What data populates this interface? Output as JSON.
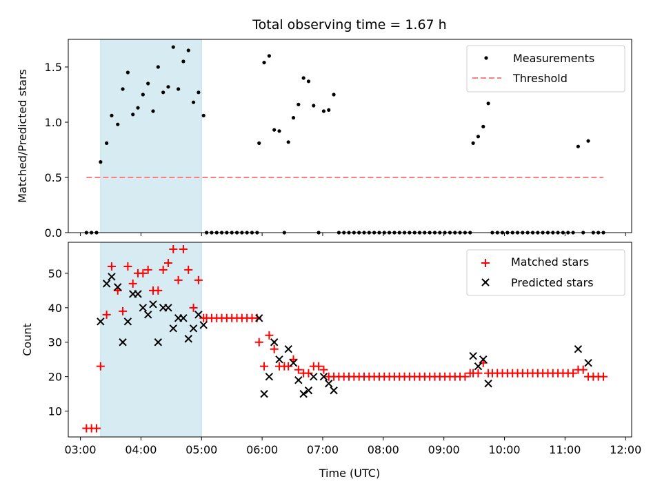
{
  "chart_data": [
    {
      "type": "scatter",
      "title": "Total observing time = 1.67 h",
      "xlabel": "",
      "ylabel": "Matched/Predicted stars",
      "ylim": [
        0,
        1.75
      ],
      "xlim": [
        "02:48",
        "12:06"
      ],
      "yticks": [
        "0.0",
        "0.5",
        "1.0",
        "1.5"
      ],
      "legend": "top-right",
      "highlight_span": {
        "from": "03:20",
        "to": "05:00",
        "color": "#add8e6"
      },
      "series": [
        {
          "name": "Measurements",
          "kind": "points",
          "color": "#000000",
          "points": [
            [
              "03:06",
              0
            ],
            [
              "03:11",
              0
            ],
            [
              "03:16",
              0
            ],
            [
              "03:20",
              0.64
            ],
            [
              "03:26",
              0.81
            ],
            [
              "03:31",
              1.06
            ],
            [
              "03:37",
              0.98
            ],
            [
              "03:42",
              1.3
            ],
            [
              "03:47",
              1.45
            ],
            [
              "03:52",
              1.07
            ],
            [
              "03:57",
              1.13
            ],
            [
              "04:02",
              1.25
            ],
            [
              "04:07",
              1.35
            ],
            [
              "04:12",
              1.1
            ],
            [
              "04:17",
              1.5
            ],
            [
              "04:22",
              1.27
            ],
            [
              "04:27",
              1.32
            ],
            [
              "04:32",
              1.68
            ],
            [
              "04:37",
              1.3
            ],
            [
              "04:42",
              1.55
            ],
            [
              "04:47",
              1.65
            ],
            [
              "04:52",
              1.18
            ],
            [
              "04:57",
              1.27
            ],
            [
              "05:02",
              1.06
            ],
            [
              "05:05",
              0
            ],
            [
              "05:10",
              0
            ],
            [
              "05:15",
              0
            ],
            [
              "05:20",
              0
            ],
            [
              "05:25",
              0
            ],
            [
              "05:30",
              0
            ],
            [
              "05:35",
              0
            ],
            [
              "05:40",
              0
            ],
            [
              "05:45",
              0
            ],
            [
              "05:50",
              0
            ],
            [
              "05:55",
              0
            ],
            [
              "05:57",
              0.81
            ],
            [
              "06:02",
              1.54
            ],
            [
              "06:07",
              1.6
            ],
            [
              "06:12",
              0.93
            ],
            [
              "06:17",
              0.92
            ],
            [
              "06:22",
              0
            ],
            [
              "06:26",
              0.82
            ],
            [
              "06:31",
              1.04
            ],
            [
              "06:36",
              1.16
            ],
            [
              "06:41",
              1.4
            ],
            [
              "06:46",
              1.37
            ],
            [
              "06:51",
              1.15
            ],
            [
              "06:56",
              0
            ],
            [
              "07:01",
              1.1
            ],
            [
              "07:06",
              1.11
            ],
            [
              "07:11",
              1.25
            ],
            [
              "07:16",
              0
            ],
            [
              "07:21",
              0
            ],
            [
              "07:26",
              0
            ],
            [
              "07:31",
              0
            ],
            [
              "07:36",
              0
            ],
            [
              "07:41",
              0
            ],
            [
              "07:46",
              0
            ],
            [
              "07:51",
              0
            ],
            [
              "07:56",
              0
            ],
            [
              "08:01",
              0
            ],
            [
              "08:06",
              0
            ],
            [
              "08:11",
              0
            ],
            [
              "08:16",
              0
            ],
            [
              "08:21",
              0
            ],
            [
              "08:26",
              0
            ],
            [
              "08:31",
              0
            ],
            [
              "08:36",
              0
            ],
            [
              "08:41",
              0
            ],
            [
              "08:46",
              0
            ],
            [
              "08:51",
              0
            ],
            [
              "08:56",
              0
            ],
            [
              "09:01",
              0
            ],
            [
              "09:06",
              0
            ],
            [
              "09:11",
              0
            ],
            [
              "09:16",
              0
            ],
            [
              "09:21",
              0
            ],
            [
              "09:26",
              0
            ],
            [
              "09:29",
              0.81
            ],
            [
              "09:34",
              0.87
            ],
            [
              "09:39",
              0.96
            ],
            [
              "09:44",
              1.17
            ],
            [
              "09:48",
              0
            ],
            [
              "09:53",
              0
            ],
            [
              "09:58",
              0
            ],
            [
              "10:03",
              0
            ],
            [
              "10:08",
              0
            ],
            [
              "10:13",
              0
            ],
            [
              "10:18",
              0
            ],
            [
              "10:23",
              0
            ],
            [
              "10:28",
              0
            ],
            [
              "10:33",
              0
            ],
            [
              "10:38",
              0
            ],
            [
              "10:43",
              0
            ],
            [
              "10:48",
              0
            ],
            [
              "10:53",
              0
            ],
            [
              "10:58",
              0
            ],
            [
              "11:03",
              0
            ],
            [
              "11:08",
              0
            ],
            [
              "11:13",
              0.78
            ],
            [
              "11:18",
              0
            ],
            [
              "11:23",
              0.83
            ],
            [
              "11:28",
              0
            ],
            [
              "11:33",
              0
            ],
            [
              "11:38",
              0
            ]
          ]
        },
        {
          "name": "Threshold",
          "kind": "dashed-line",
          "color": "#ff7f7f",
          "points": [
            [
              "03:06",
              0.5
            ],
            [
              "11:38",
              0.5
            ]
          ]
        }
      ]
    },
    {
      "type": "scatter",
      "title": "",
      "xlabel": "Time (UTC)",
      "ylabel": "Count",
      "ylim": [
        2.5,
        59
      ],
      "xlim": [
        "02:48",
        "12:06"
      ],
      "yticks": [
        "10",
        "20",
        "30",
        "40",
        "50"
      ],
      "xticks": [
        "03:00",
        "04:00",
        "05:00",
        "06:00",
        "07:00",
        "08:00",
        "09:00",
        "10:00",
        "11:00",
        "12:00"
      ],
      "legend": "top-right",
      "highlight_span": {
        "from": "03:20",
        "to": "05:00",
        "color": "#add8e6"
      },
      "series": [
        {
          "name": "Matched stars",
          "marker": "plus",
          "color": "#ff0000",
          "points": [
            [
              "03:06",
              5
            ],
            [
              "03:11",
              5
            ],
            [
              "03:16",
              5
            ],
            [
              "03:20",
              23
            ],
            [
              "03:26",
              38
            ],
            [
              "03:31",
              52
            ],
            [
              "03:37",
              45
            ],
            [
              "03:42",
              39
            ],
            [
              "03:47",
              52
            ],
            [
              "03:52",
              47
            ],
            [
              "03:57",
              50
            ],
            [
              "04:02",
              50
            ],
            [
              "04:07",
              51
            ],
            [
              "04:12",
              45
            ],
            [
              "04:17",
              45
            ],
            [
              "04:22",
              51
            ],
            [
              "04:27",
              53
            ],
            [
              "04:32",
              57
            ],
            [
              "04:37",
              48
            ],
            [
              "04:42",
              57
            ],
            [
              "04:47",
              51
            ],
            [
              "04:52",
              40
            ],
            [
              "04:57",
              48
            ],
            [
              "05:02",
              37
            ],
            [
              "05:05",
              37
            ],
            [
              "05:10",
              37
            ],
            [
              "05:15",
              37
            ],
            [
              "05:20",
              37
            ],
            [
              "05:25",
              37
            ],
            [
              "05:30",
              37
            ],
            [
              "05:35",
              37
            ],
            [
              "05:40",
              37
            ],
            [
              "05:45",
              37
            ],
            [
              "05:50",
              37
            ],
            [
              "05:55",
              37
            ],
            [
              "05:57",
              30
            ],
            [
              "06:02",
              23
            ],
            [
              "06:07",
              32
            ],
            [
              "06:12",
              28
            ],
            [
              "06:17",
              23
            ],
            [
              "06:22",
              23
            ],
            [
              "06:26",
              23
            ],
            [
              "06:31",
              25
            ],
            [
              "06:36",
              22
            ],
            [
              "06:41",
              21
            ],
            [
              "06:46",
              21
            ],
            [
              "06:51",
              23
            ],
            [
              "06:56",
              23
            ],
            [
              "07:01",
              22
            ],
            [
              "07:06",
              20
            ],
            [
              "07:11",
              20
            ],
            [
              "07:16",
              20
            ],
            [
              "07:21",
              20
            ],
            [
              "07:26",
              20
            ],
            [
              "07:31",
              20
            ],
            [
              "07:36",
              20
            ],
            [
              "07:41",
              20
            ],
            [
              "07:46",
              20
            ],
            [
              "07:51",
              20
            ],
            [
              "07:56",
              20
            ],
            [
              "08:01",
              20
            ],
            [
              "08:06",
              20
            ],
            [
              "08:11",
              20
            ],
            [
              "08:16",
              20
            ],
            [
              "08:21",
              20
            ],
            [
              "08:26",
              20
            ],
            [
              "08:31",
              20
            ],
            [
              "08:36",
              20
            ],
            [
              "08:41",
              20
            ],
            [
              "08:46",
              20
            ],
            [
              "08:51",
              20
            ],
            [
              "08:56",
              20
            ],
            [
              "09:01",
              20
            ],
            [
              "09:06",
              20
            ],
            [
              "09:11",
              20
            ],
            [
              "09:16",
              20
            ],
            [
              "09:21",
              20
            ],
            [
              "09:26",
              21
            ],
            [
              "09:29",
              21
            ],
            [
              "09:34",
              21
            ],
            [
              "09:39",
              24
            ],
            [
              "09:44",
              21
            ],
            [
              "09:48",
              21
            ],
            [
              "09:53",
              21
            ],
            [
              "09:58",
              21
            ],
            [
              "10:03",
              21
            ],
            [
              "10:08",
              21
            ],
            [
              "10:13",
              21
            ],
            [
              "10:18",
              21
            ],
            [
              "10:23",
              21
            ],
            [
              "10:28",
              21
            ],
            [
              "10:33",
              21
            ],
            [
              "10:38",
              21
            ],
            [
              "10:43",
              21
            ],
            [
              "10:48",
              21
            ],
            [
              "10:53",
              21
            ],
            [
              "10:58",
              21
            ],
            [
              "11:03",
              21
            ],
            [
              "11:08",
              21
            ],
            [
              "11:13",
              22
            ],
            [
              "11:18",
              22
            ],
            [
              "11:23",
              20
            ],
            [
              "11:28",
              20
            ],
            [
              "11:33",
              20
            ],
            [
              "11:38",
              20
            ]
          ]
        },
        {
          "name": "Predicted stars",
          "marker": "x",
          "color": "#000000",
          "points": [
            [
              "03:20",
              36
            ],
            [
              "03:26",
              47
            ],
            [
              "03:31",
              49
            ],
            [
              "03:37",
              46
            ],
            [
              "03:42",
              30
            ],
            [
              "03:47",
              36
            ],
            [
              "03:52",
              44
            ],
            [
              "03:57",
              44
            ],
            [
              "04:02",
              40
            ],
            [
              "04:07",
              38
            ],
            [
              "04:12",
              41
            ],
            [
              "04:17",
              30
            ],
            [
              "04:22",
              40
            ],
            [
              "04:27",
              40
            ],
            [
              "04:32",
              34
            ],
            [
              "04:37",
              37
            ],
            [
              "04:42",
              37
            ],
            [
              "04:47",
              31
            ],
            [
              "04:52",
              34
            ],
            [
              "04:57",
              38
            ],
            [
              "05:02",
              35
            ],
            [
              "05:57",
              37
            ],
            [
              "06:02",
              15
            ],
            [
              "06:07",
              20
            ],
            [
              "06:12",
              30
            ],
            [
              "06:17",
              25
            ],
            [
              "06:26",
              28
            ],
            [
              "06:31",
              24
            ],
            [
              "06:36",
              19
            ],
            [
              "06:41",
              15
            ],
            [
              "06:46",
              16
            ],
            [
              "06:51",
              20
            ],
            [
              "07:01",
              20
            ],
            [
              "07:06",
              18
            ],
            [
              "07:11",
              16
            ],
            [
              "09:29",
              26
            ],
            [
              "09:34",
              23
            ],
            [
              "09:39",
              25
            ],
            [
              "09:44",
              18
            ],
            [
              "11:13",
              28
            ],
            [
              "11:23",
              24
            ]
          ]
        }
      ]
    }
  ]
}
